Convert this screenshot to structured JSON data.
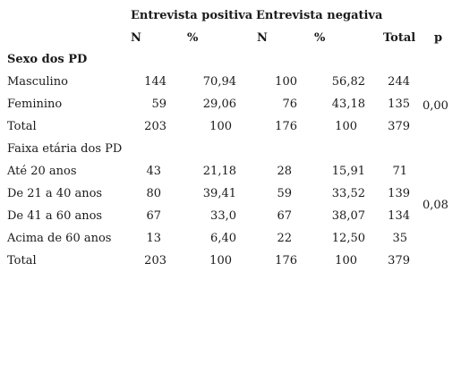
{
  "header": {
    "group_positive": "Entrevista positiva",
    "group_negative": "Entrevista negativa",
    "col_n1": "N",
    "col_pct1": "%",
    "col_n2": "N",
    "col_pct2": "%",
    "col_total": "Total",
    "col_p": "p"
  },
  "sections": [
    {
      "title": "Sexo dos PD",
      "title_bold": true,
      "rows": [
        {
          "label": "Masculino",
          "n1": "144",
          "pct1": "70,94",
          "n2": "100",
          "pct2": "56,82",
          "total": "244"
        },
        {
          "label": "Feminino",
          "n1": "59",
          "pct1": "29,06",
          "n2": "76",
          "pct2": "43,18",
          "total": "135"
        },
        {
          "label": "Total",
          "n1": "203",
          "pct1": "100",
          "n2": "176",
          "pct2": "100",
          "total": "379"
        }
      ],
      "p": "0,00"
    },
    {
      "title": "Faixa etária dos PD",
      "title_bold": false,
      "rows": [
        {
          "label": "Até 20 anos",
          "n1": "43",
          "pct1": "21,18",
          "n2": "28",
          "pct2": "15,91",
          "total": "71"
        },
        {
          "label": "De 21 a 40 anos",
          "n1": "80",
          "pct1": "39,41",
          "n2": "59",
          "pct2": "33,52",
          "total": "139"
        },
        {
          "label": "De 41 a 60 anos",
          "n1": "67",
          "pct1": "33,0",
          "n2": "67",
          "pct2": "38,07",
          "total": "134"
        },
        {
          "label": "Acima de 60 anos",
          "n1": "13",
          "pct1": "6,40",
          "n2": "22",
          "pct2": "12,50",
          "total": "35"
        },
        {
          "label": "Total",
          "n1": "203",
          "pct1": "100",
          "n2": "176",
          "pct2": "100",
          "total": "379"
        }
      ],
      "p": "0,08"
    }
  ]
}
